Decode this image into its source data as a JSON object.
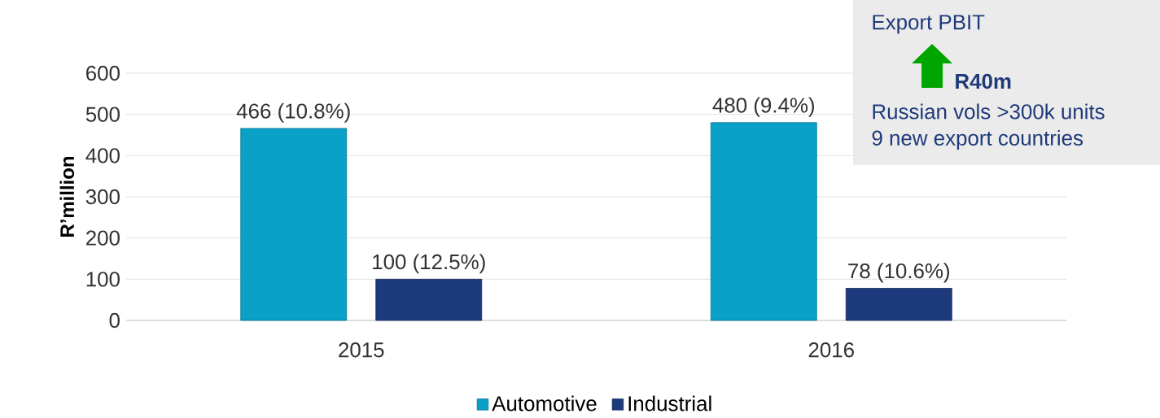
{
  "chart_data": {
    "type": "bar",
    "ylabel": "R’million",
    "categories": [
      "2015",
      "2016"
    ],
    "series": [
      {
        "name": "Automotive",
        "color": "#0aa1c9",
        "values": [
          466,
          480
        ],
        "value_labels": [
          "466 (10.8%)",
          "480 (9.4%)"
        ]
      },
      {
        "name": "Industrial",
        "color": "#1c3a7c",
        "values": [
          100,
          78
        ],
        "value_labels": [
          "100 (12.5%)",
          "78 (10.6%)"
        ]
      }
    ],
    "ylim": [
      0,
      600
    ],
    "yticks": [
      0,
      100,
      200,
      300,
      400,
      500,
      600
    ],
    "grid": "y",
    "legend": "bottom",
    "annotations": [
      "Export PBIT",
      "R40m",
      "Russian vols >300k units",
      "9 new export countries"
    ]
  }
}
